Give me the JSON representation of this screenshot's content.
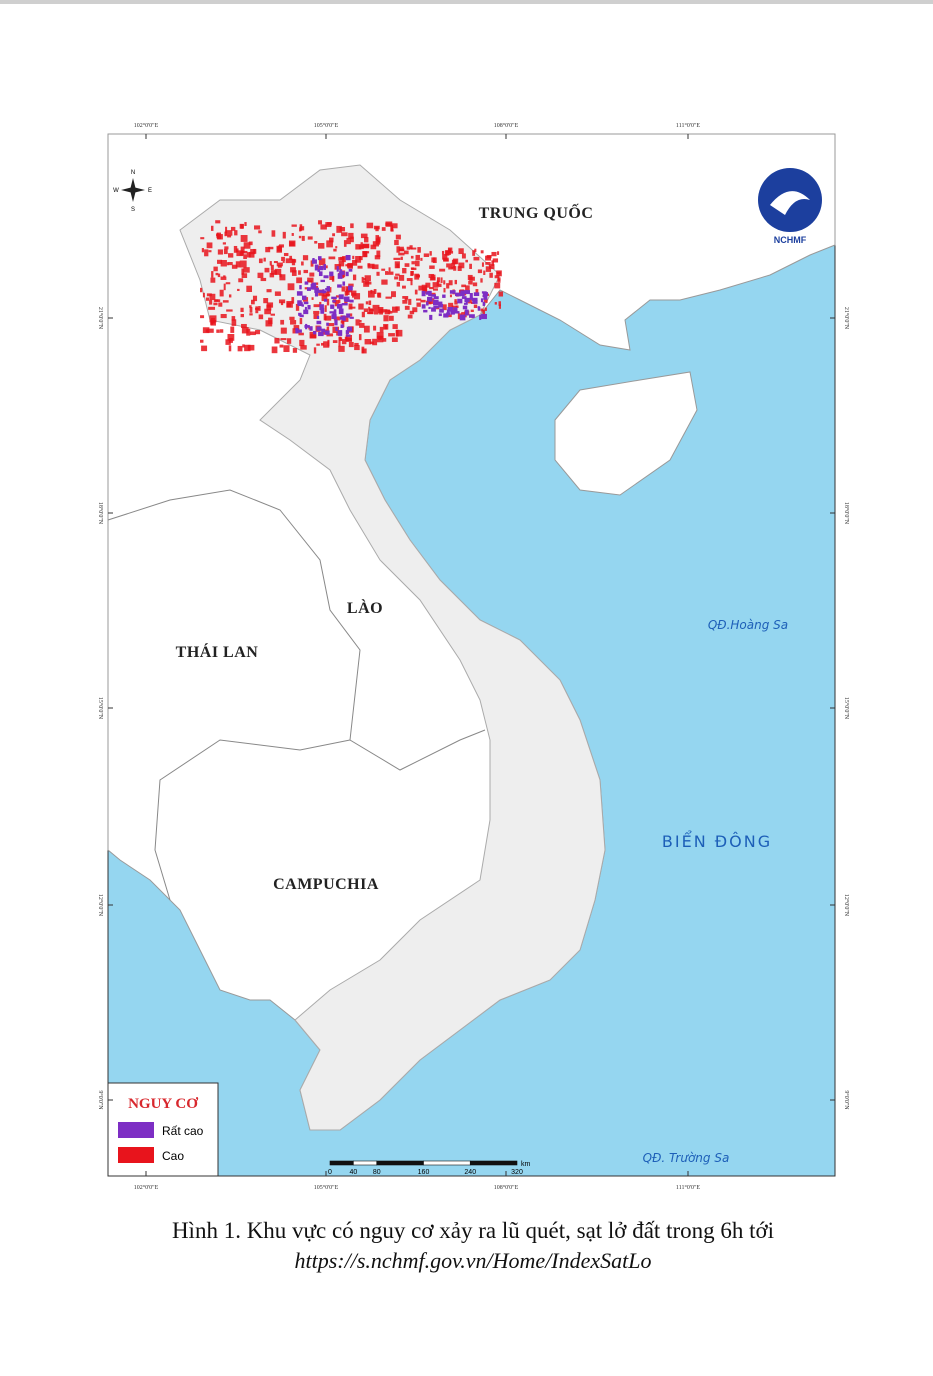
{
  "map": {
    "graticule": {
      "top": [
        "102°0'0\"E",
        "105°0'0\"E",
        "108°0'0\"E",
        "111°0'0\"E"
      ],
      "bottom": [
        "102°0'0\"E",
        "105°0'0\"E",
        "108°0'0\"E",
        "111°0'0\"E"
      ],
      "left": [
        "21°0'0\"N",
        "18°0'0\"N",
        "15°0'0\"N",
        "12°0'0\"N",
        "9°0'0\"N"
      ],
      "right": [
        "21°0'0\"N",
        "18°0'0\"N",
        "15°0'0\"N",
        "12°0'0\"N",
        "9°0'0\"N"
      ]
    },
    "compass": [
      "N",
      "E",
      "S",
      "W"
    ],
    "logo": "NCHMF",
    "labels": {
      "china": "TRUNG QUỐC",
      "laos": "LÀO",
      "thailand": "THÁI LAN",
      "cambodia": "CAMPUCHIA",
      "east_sea": "BIỂN ĐÔNG",
      "paracel": "QĐ.Hoàng Sa",
      "spratly": "QĐ. Trường Sa"
    },
    "legend": {
      "title": "NGUY CƠ",
      "items": [
        {
          "label": "Rất cao",
          "color": "#7d2ec4"
        },
        {
          "label": "Cao",
          "color": "#e8141c"
        }
      ]
    },
    "scale_bar": {
      "ticks": [
        0,
        40,
        80,
        160,
        240,
        320
      ],
      "unit": "km"
    }
  },
  "caption": {
    "text": "Hình 1. Khu vực có nguy cơ xảy ra lũ quét, sạt lở đất trong 6h tới",
    "url": "https://s.nchmf.gov.vn/Home/IndexSatLo"
  }
}
